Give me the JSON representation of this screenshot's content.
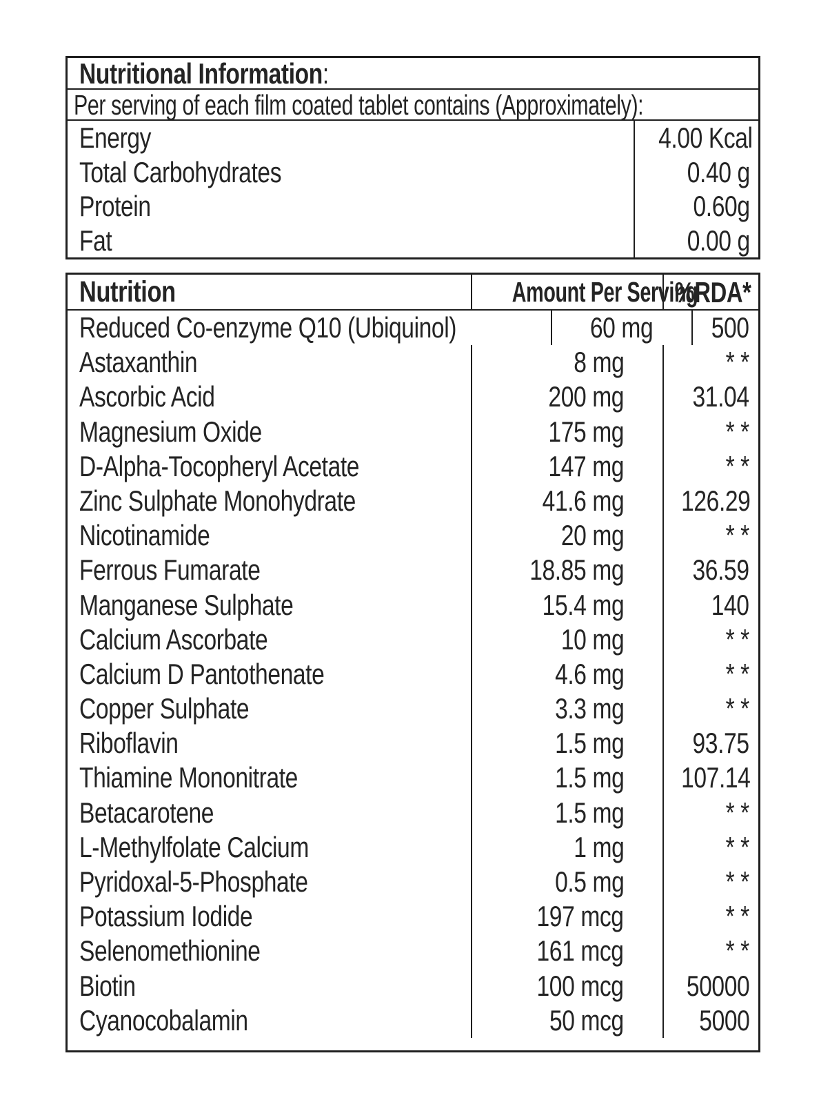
{
  "colors": {
    "background": "#ffffff",
    "text": "#242424",
    "border": "#1f1f1f"
  },
  "facts": {
    "title": "Nutritional Information",
    "title_colon": ":",
    "subtitle": "Per serving of each film coated tablet contains (Approximately):",
    "rows": [
      {
        "label": "Energy",
        "value": "4.00 Kcal"
      },
      {
        "label": "Total Carbohydrates",
        "value": "0.40 g"
      },
      {
        "label": "Protein",
        "value": "0.60g"
      },
      {
        "label": "Fat",
        "value": "0.00 g"
      }
    ]
  },
  "nutrient_table": {
    "headers": {
      "nutrition": "Nutrition",
      "amount": "Amount Per Serving",
      "rda": "%RDA*"
    },
    "rows": [
      {
        "name": "Reduced Co-enzyme Q10 (Ubiquinol)",
        "amount": "60 mg",
        "rda": "500"
      },
      {
        "name": "Astaxanthin",
        "amount": "8 mg",
        "rda": "* *"
      },
      {
        "name": "Ascorbic Acid",
        "amount": "200 mg",
        "rda": "31.04"
      },
      {
        "name": "Magnesium Oxide",
        "amount": "175 mg",
        "rda": "* *"
      },
      {
        "name": "D-Alpha-Tocopheryl Acetate",
        "amount": "147 mg",
        "rda": "* *"
      },
      {
        "name": "Zinc Sulphate Monohydrate",
        "amount": "41.6 mg",
        "rda": "126.29"
      },
      {
        "name": "Nicotinamide",
        "amount": "20 mg",
        "rda": "* *"
      },
      {
        "name": "Ferrous Fumarate",
        "amount": "18.85 mg",
        "rda": "36.59"
      },
      {
        "name": "Manganese Sulphate",
        "amount": "15.4 mg",
        "rda": "140"
      },
      {
        "name": "Calcium Ascorbate",
        "amount": "10 mg",
        "rda": "* *"
      },
      {
        "name": "Calcium D Pantothenate",
        "amount": "4.6 mg",
        "rda": "* *"
      },
      {
        "name": "Copper Sulphate",
        "amount": "3.3 mg",
        "rda": "* *"
      },
      {
        "name": "Riboflavin",
        "amount": "1.5 mg",
        "rda": "93.75"
      },
      {
        "name": "Thiamine Mononitrate",
        "amount": "1.5 mg",
        "rda": "107.14"
      },
      {
        "name": "Betacarotene",
        "amount": "1.5 mg",
        "rda": "* *"
      },
      {
        "name": "L-Methylfolate Calcium",
        "amount": "1 mg",
        "rda": "* *"
      },
      {
        "name": "Pyridoxal-5-Phosphate",
        "amount": "0.5 mg",
        "rda": "* *"
      },
      {
        "name": "Potassium Iodide",
        "amount": "197 mcg",
        "rda": "* *"
      },
      {
        "name": "Selenomethionine",
        "amount": "161 mcg",
        "rda": "* *"
      },
      {
        "name": "Biotin",
        "amount": "100 mcg",
        "rda": "50000"
      },
      {
        "name": "Cyanocobalamin",
        "amount": "50 mcg",
        "rda": "5000"
      }
    ]
  }
}
